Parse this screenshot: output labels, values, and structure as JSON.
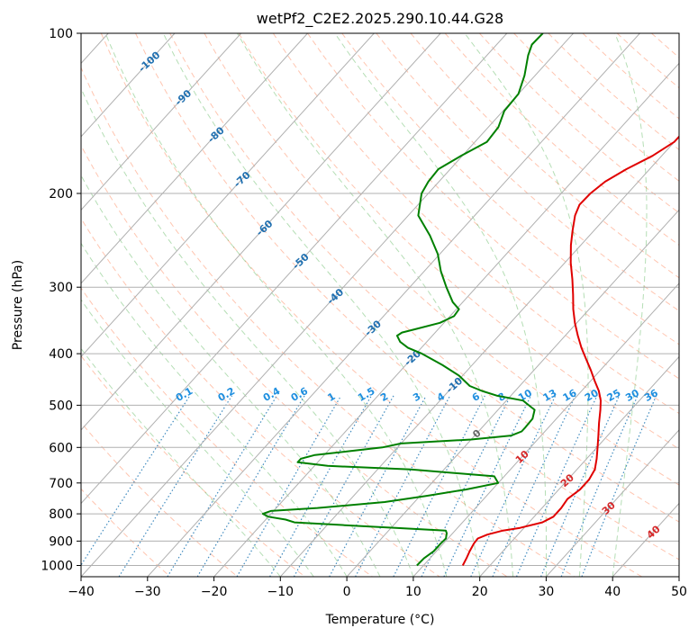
{
  "chart_data": {
    "type": "line",
    "title": "wetPf2_C2E2.2025.290.10.44.G28",
    "xlabel": "Temperature (°C)",
    "ylabel": "Pressure (hPa)",
    "xlim": [
      -40,
      50
    ],
    "ylim": [
      1050,
      100
    ],
    "yscale": "log",
    "xticks": [
      -40,
      -30,
      -20,
      -10,
      0,
      10,
      20,
      30,
      40,
      50
    ],
    "yticks": [
      100,
      200,
      300,
      400,
      500,
      600,
      700,
      800,
      900,
      1000
    ],
    "grid": true,
    "skew": "skew-T log-p",
    "isotherm_labels": [
      "-100",
      "-90",
      "-80",
      "-70",
      "-60",
      "-50",
      "-40",
      "-30",
      "-20",
      "-10",
      "0",
      "10",
      "20",
      "30",
      "40"
    ],
    "mixing_ratio_labels": [
      "0.1",
      "0.2",
      "0.4",
      "0.6",
      "1",
      "1.5",
      "2",
      "3",
      "4",
      "6",
      "8",
      "10",
      "13",
      "16",
      "20",
      "25",
      "30",
      "36"
    ],
    "series": [
      {
        "name": "Temperature",
        "color": "#e00000",
        "p": [
          1000,
          970,
          940,
          910,
          890,
          875,
          860,
          850,
          830,
          810,
          780,
          750,
          720,
          690,
          660,
          630,
          600,
          570,
          540,
          510,
          490,
          470,
          450,
          430,
          410,
          390,
          370,
          350,
          330,
          310,
          290,
          270,
          250,
          235,
          220,
          210,
          200,
          190,
          180,
          170,
          160,
          150,
          140,
          130,
          120,
          115,
          110,
          105,
          100
        ],
        "t": [
          15.9,
          15.5,
          15.0,
          14.6,
          14.5,
          15.4,
          17.2,
          19.4,
          22.0,
          22.9,
          22.9,
          22.6,
          23.2,
          23.2,
          22.7,
          21.5,
          20.1,
          18.6,
          17.0,
          15.4,
          14.2,
          12.6,
          10.6,
          8.6,
          6.4,
          4.1,
          1.9,
          -0.3,
          -2.4,
          -4.4,
          -6.6,
          -9.1,
          -11.5,
          -13.2,
          -14.9,
          -15.7,
          -15.6,
          -15.0,
          -13.5,
          -11.4,
          -10.0,
          -10.0,
          -11.0,
          -12.2,
          -13.3,
          -13.0,
          -13.2,
          -14.0,
          -14.5
        ]
      },
      {
        "name": "Dewpoint",
        "color": "#008000",
        "p": [
          1000,
          970,
          940,
          910,
          890,
          870,
          860,
          850,
          840,
          830,
          820,
          810,
          800,
          790,
          780,
          760,
          740,
          720,
          700,
          680,
          660,
          650,
          640,
          630,
          620,
          610,
          600,
          590,
          580,
          570,
          560,
          550,
          530,
          510,
          500,
          490,
          480,
          470,
          460,
          440,
          420,
          400,
          390,
          380,
          370,
          365,
          360,
          350,
          340,
          330,
          320,
          300,
          280,
          260,
          240,
          220,
          200,
          190,
          180,
          170,
          160,
          150,
          140,
          130,
          120,
          110,
          105,
          100
        ],
        "t": [
          9.0,
          9.1,
          9.6,
          9.6,
          9.7,
          9.1,
          8.6,
          0.7,
          -7.4,
          -15.3,
          -17.0,
          -20.0,
          -21.2,
          -20.4,
          -13.8,
          -4.5,
          1.0,
          6.0,
          10.0,
          8.5,
          -5.0,
          -18.0,
          -23.0,
          -23.0,
          -21.4,
          -16.8,
          -12.3,
          -10.0,
          0.0,
          5.5,
          6.5,
          6.5,
          6.4,
          5.5,
          4.0,
          2.5,
          -2.0,
          -5.0,
          -7.5,
          -10.5,
          -14.5,
          -19.1,
          -22.0,
          -24.0,
          -25.3,
          -25.0,
          -23.5,
          -20.6,
          -19.4,
          -19.6,
          -21.5,
          -24.5,
          -27.5,
          -30.3,
          -34.0,
          -38.5,
          -41.0,
          -41.6,
          -41.8,
          -40.2,
          -38.2,
          -38.5,
          -39.8,
          -40.0,
          -41.6,
          -43.8,
          -44.7,
          -44.6
        ]
      }
    ]
  }
}
